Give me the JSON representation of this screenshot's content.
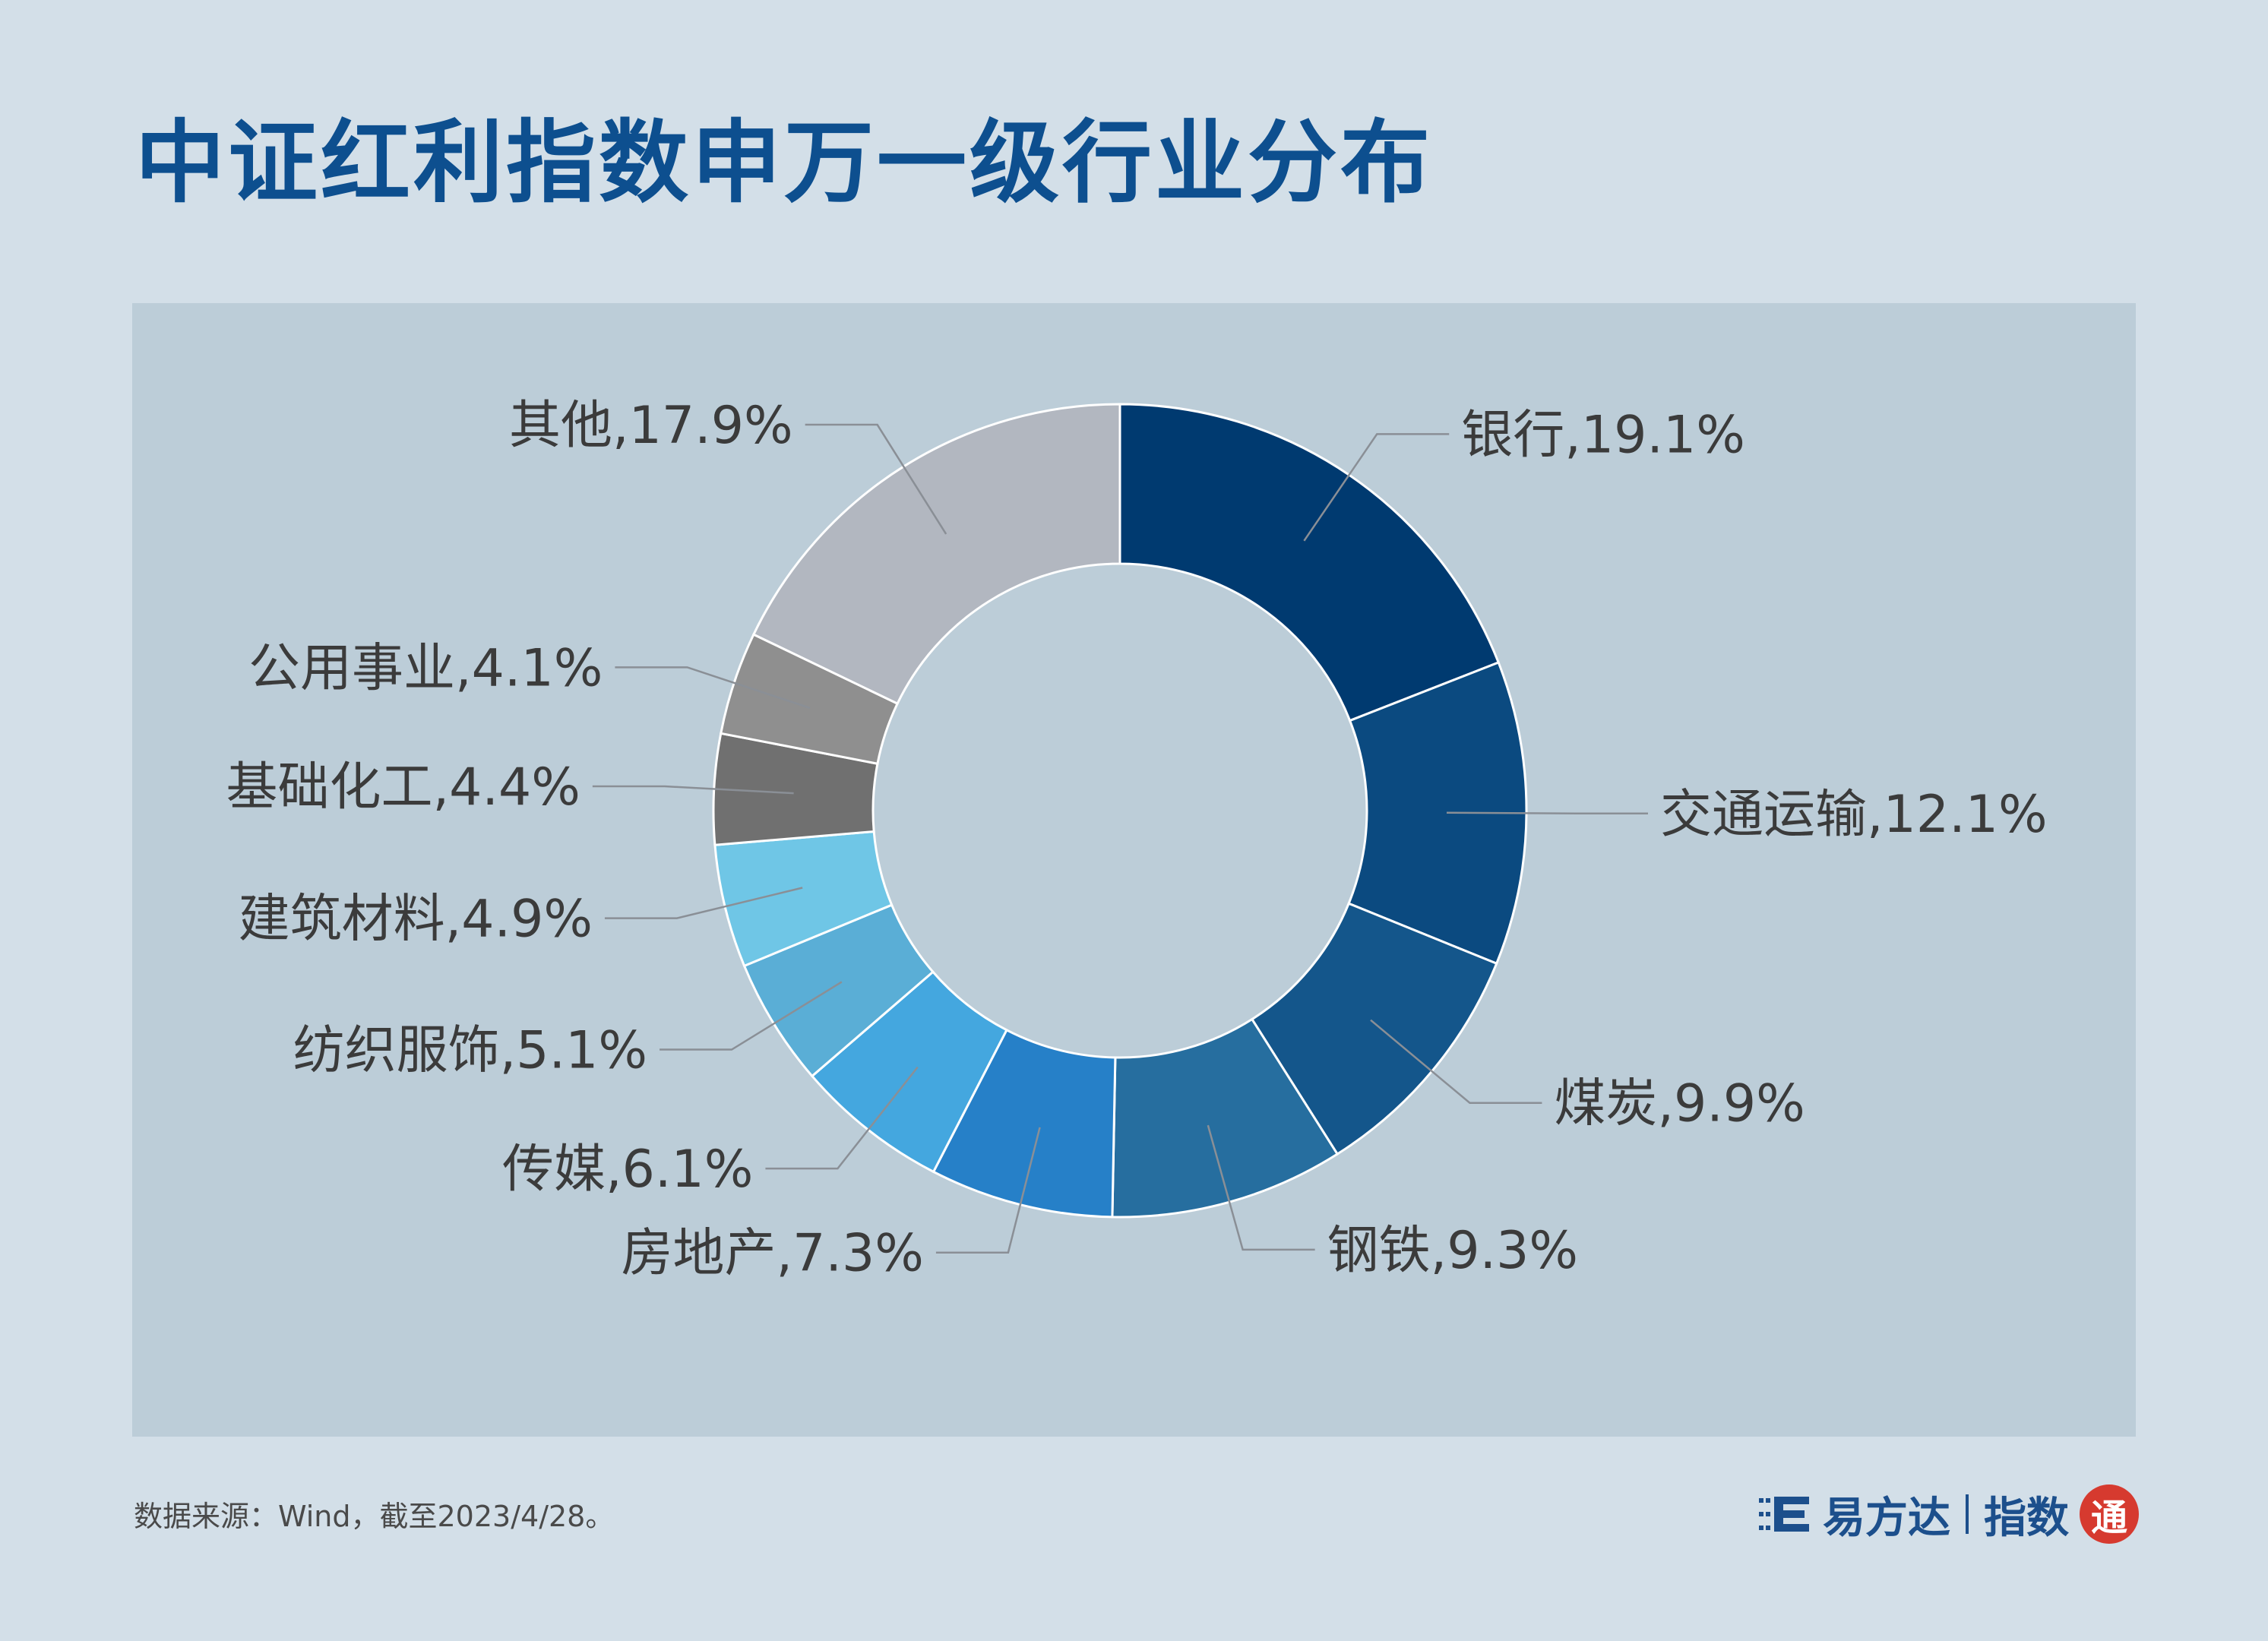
{
  "header": {
    "title": "中证红利指数申万一级行业分布"
  },
  "footer": {
    "source": "数据来源：Wind，截至2023/4/28。",
    "brand_name": "易方达",
    "brand_sub": "指数",
    "brand_seal": "通"
  },
  "chart_data": {
    "type": "pie",
    "style": "donut",
    "start": "top, clockwise",
    "categories": [
      "银行",
      "交通运输",
      "煤炭",
      "钢铁",
      "房地产",
      "传媒",
      "纺织服饰",
      "建筑材料",
      "基础化工",
      "公用事业",
      "其他"
    ],
    "values": [
      19.1,
      12.1,
      9.9,
      9.3,
      7.3,
      6.1,
      5.1,
      4.9,
      4.4,
      4.1,
      17.9
    ],
    "unit": "%",
    "labels": [
      "银行,19.1%",
      "交通运输,12.1%",
      "煤炭,9.9%",
      "钢铁,9.3%",
      "房地产,7.3%",
      "传媒,6.1%",
      "纺织服饰,5.1%",
      "建筑材料,4.9%",
      "基础化工,4.4%",
      "公用事业,4.1%",
      "其他,17.9%"
    ],
    "colors": [
      "#003a70",
      "#0b4a80",
      "#14568b",
      "#266e9f",
      "#2680c8",
      "#44a7df",
      "#5aaed6",
      "#6fc6e6",
      "#707070",
      "#8f8f8f",
      "#b2b7c0"
    ]
  }
}
